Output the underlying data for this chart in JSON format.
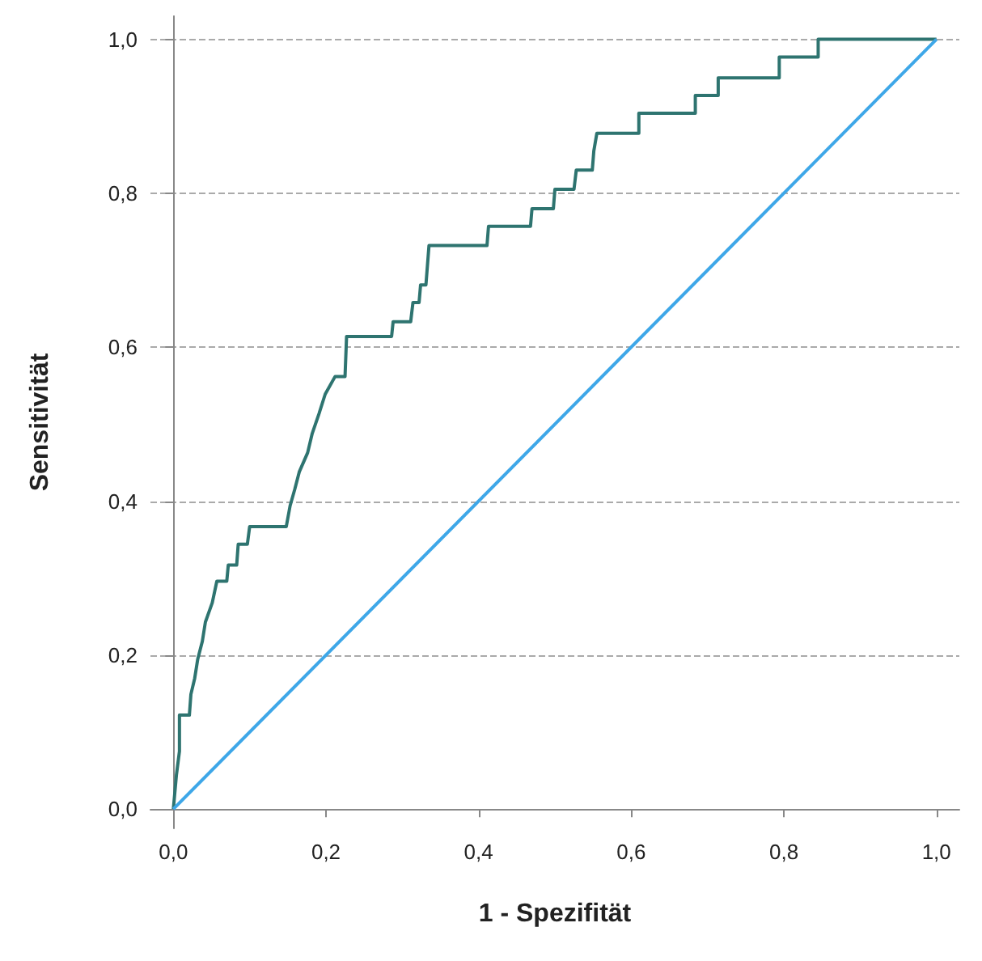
{
  "chart_data": {
    "type": "line",
    "xlabel": "1 - Spezifität",
    "ylabel": "Sensitivität",
    "xlim": [
      -0.03,
      1.03
    ],
    "ylim": [
      -0.025,
      1.03
    ],
    "xticks": [
      {
        "value": 0,
        "label": "0,0"
      },
      {
        "value": 0.2,
        "label": "0,2"
      },
      {
        "value": 0.4,
        "label": "0,4"
      },
      {
        "value": 0.6,
        "label": "0,6"
      },
      {
        "value": 0.8,
        "label": "0,8"
      },
      {
        "value": 1,
        "label": "1,0"
      }
    ],
    "yticks": [
      {
        "value": 0,
        "label": "0,0"
      },
      {
        "value": 0.2,
        "label": "0,2"
      },
      {
        "value": 0.4,
        "label": "0,4"
      },
      {
        "value": 0.6,
        "label": "0,6"
      },
      {
        "value": 0.8,
        "label": "0,8"
      },
      {
        "value": 1,
        "label": "1,0"
      }
    ],
    "grid": "y",
    "marker": "none",
    "line_style": "solid",
    "series": [
      {
        "color": "#2e7470",
        "x": [
          0,
          0.004,
          0.008,
          0.008,
          0.021,
          0.023,
          0.028,
          0.032,
          0.038,
          0.042,
          0.051,
          0.057,
          0.07,
          0.072,
          0.083,
          0.085,
          0.097,
          0.1,
          0.148,
          0.153,
          0.159,
          0.165,
          0.176,
          0.182,
          0.191,
          0.199,
          0.212,
          0.225,
          0.227,
          0.286,
          0.288,
          0.311,
          0.314,
          0.322,
          0.324,
          0.331,
          0.335,
          0.411,
          0.413,
          0.468,
          0.47,
          0.498,
          0.5,
          0.525,
          0.528,
          0.549,
          0.551,
          0.555,
          0.61,
          0.61,
          0.684,
          0.684,
          0.714,
          0.714,
          0.794,
          0.794,
          0.845,
          0.845,
          1
        ],
        "values": [
          0,
          0.044,
          0.075,
          0.122,
          0.122,
          0.149,
          0.17,
          0.195,
          0.218,
          0.243,
          0.268,
          0.296,
          0.296,
          0.317,
          0.317,
          0.344,
          0.344,
          0.367,
          0.367,
          0.394,
          0.415,
          0.438,
          0.463,
          0.488,
          0.514,
          0.539,
          0.562,
          0.562,
          0.614,
          0.614,
          0.633,
          0.633,
          0.658,
          0.658,
          0.681,
          0.681,
          0.732,
          0.732,
          0.757,
          0.757,
          0.78,
          0.78,
          0.805,
          0.805,
          0.83,
          0.83,
          0.855,
          0.878,
          0.878,
          0.904,
          0.904,
          0.927,
          0.927,
          0.95,
          0.95,
          0.977,
          0.977,
          1,
          1
        ]
      },
      {
        "color": "#3ea7e8",
        "x": [
          0,
          1
        ],
        "values": [
          0,
          1
        ]
      }
    ]
  }
}
